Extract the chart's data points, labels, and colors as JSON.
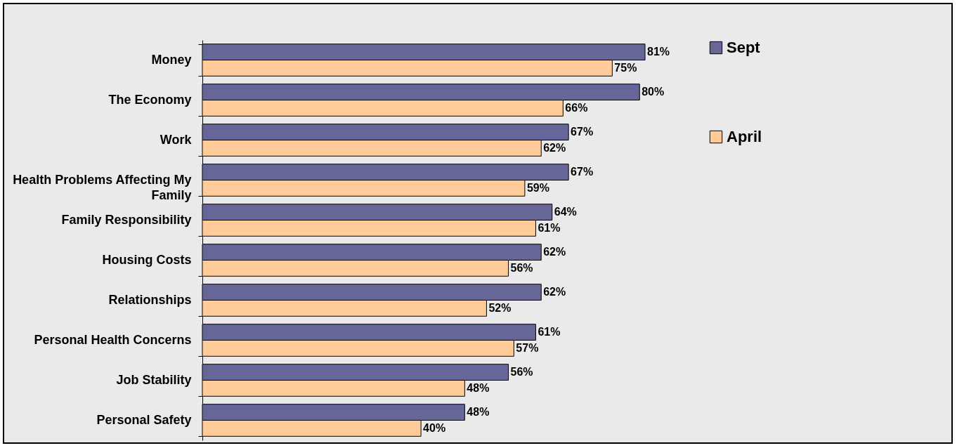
{
  "chart_data": {
    "type": "bar",
    "orientation": "horizontal",
    "categories": [
      "Money",
      "The Economy",
      "Work",
      "Health Problems Affecting My Family",
      "Family Responsibility",
      "Housing Costs",
      "Relationships",
      "Personal Health Concerns",
      "Job Stability",
      "Personal Safety"
    ],
    "series": [
      {
        "name": "Sept",
        "color": "#666699",
        "values": [
          81,
          80,
          67,
          67,
          64,
          62,
          62,
          61,
          56,
          48
        ],
        "value_labels": [
          "81%",
          "80%",
          "67%",
          "67%",
          "64%",
          "62%",
          "62%",
          "61%",
          "56%",
          "48%"
        ]
      },
      {
        "name": "April",
        "color": "#ffcc99",
        "values": [
          75,
          66,
          62,
          59,
          61,
          56,
          52,
          57,
          48,
          40
        ],
        "value_labels": [
          "75%",
          "66%",
          "62%",
          "59%",
          "61%",
          "56%",
          "52%",
          "57%",
          "48%",
          "40%"
        ]
      }
    ],
    "legend": "right",
    "grid": false
  }
}
